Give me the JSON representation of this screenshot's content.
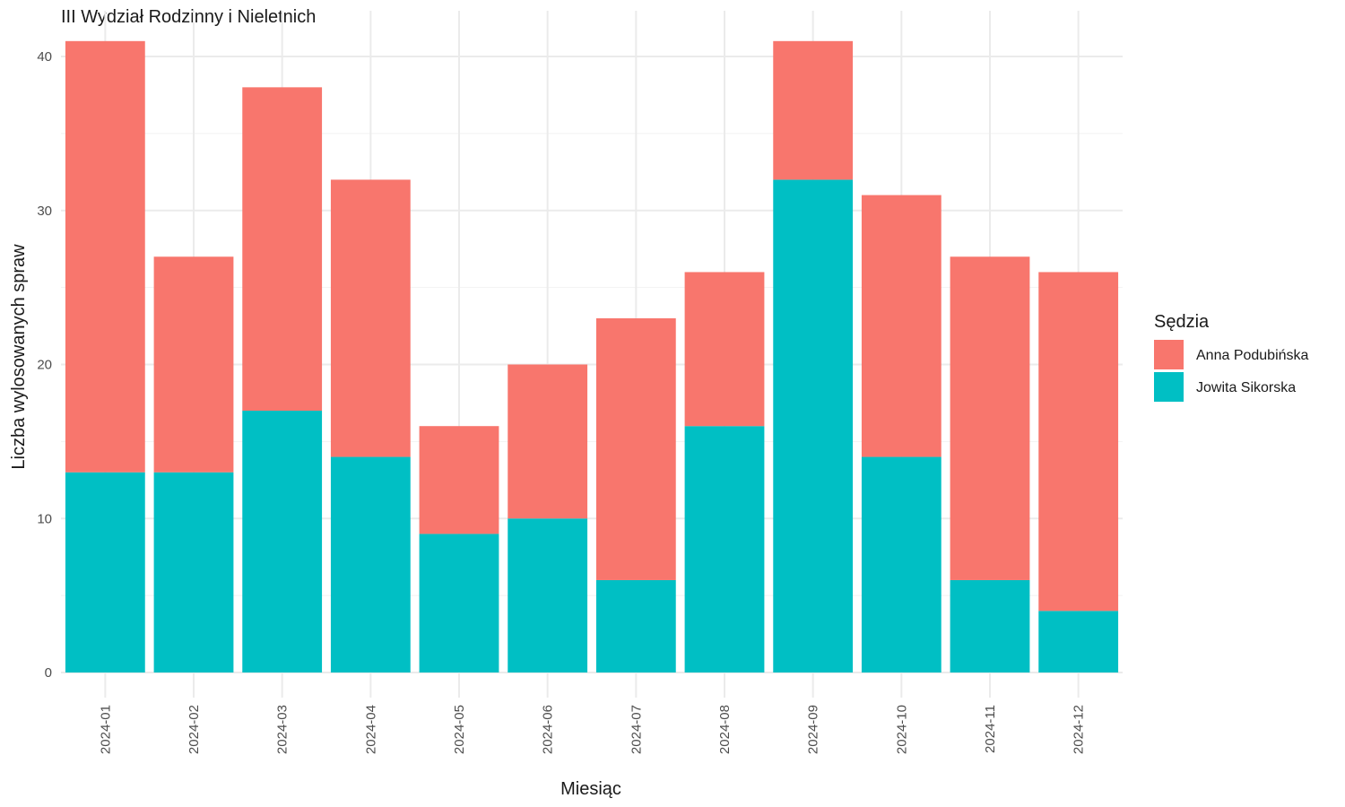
{
  "chart_data": {
    "type": "bar",
    "stacked": true,
    "title": "III Wydział Rodzinny i Nieletnich",
    "xlabel": "Miesiąc",
    "ylabel": "Liczba wylosowanych spraw",
    "categories": [
      "2024-01",
      "2024-02",
      "2024-03",
      "2024-04",
      "2024-05",
      "2024-06",
      "2024-07",
      "2024-08",
      "2024-09",
      "2024-10",
      "2024-11",
      "2024-12"
    ],
    "series": [
      {
        "name": "Jowita Sikorska",
        "color": "#00BFC4",
        "values": [
          13,
          13,
          17,
          14,
          9,
          10,
          6,
          16,
          32,
          14,
          6,
          4
        ]
      },
      {
        "name": "Anna Podubińska",
        "color": "#F8766D",
        "values": [
          28,
          14,
          21,
          18,
          7,
          10,
          17,
          10,
          9,
          17,
          21,
          22
        ]
      }
    ],
    "ylim": [
      0,
      41
    ],
    "yticks": [
      0,
      10,
      20,
      30,
      40
    ],
    "grid": true,
    "legend": {
      "title": "Sędzia",
      "position": "right",
      "entries": [
        {
          "label": "Anna Podubińska",
          "color": "#F8766D"
        },
        {
          "label": "Jowita Sikorska",
          "color": "#00BFC4"
        }
      ]
    }
  }
}
